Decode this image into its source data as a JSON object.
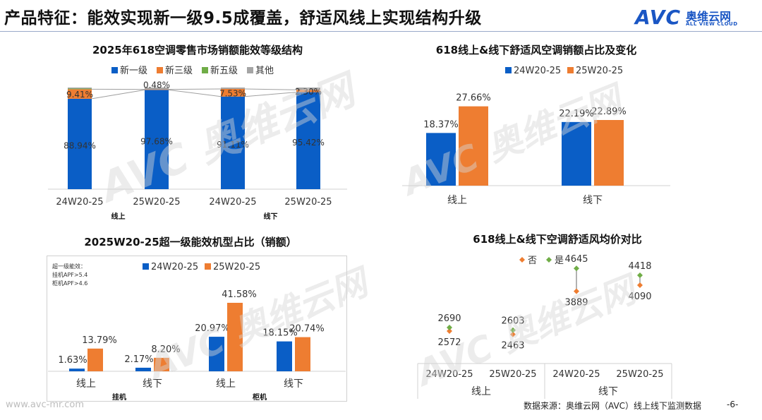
{
  "header": {
    "title": "产品特征：能效实现新一级9.5成覆盖，舒适风线上实现结构升级",
    "logo_text": "AVC",
    "logo_cn": "奥维云网",
    "logo_en": "ALL VIEW CLOUD"
  },
  "footer": {
    "url": "www.avc-mr.com",
    "source": "数据来源：奥维云网（AVC）线上线下监测数据",
    "page": "-6-"
  },
  "colors": {
    "blue": "#0a5ec6",
    "orange": "#ee7d31",
    "green": "#70ad47",
    "gray": "#a5a5a5"
  },
  "chart_data": [
    {
      "id": "energy-structure",
      "type": "bar",
      "stacked": true,
      "title": "2025年618空调零售市场销额能效等级结构",
      "categories": [
        "24W20-25",
        "25W20-25",
        "24W20-25",
        "25W20-25"
      ],
      "groups": [
        {
          "label": "线上",
          "span": [
            0,
            1
          ]
        },
        {
          "label": "线下",
          "span": [
            2,
            3
          ]
        }
      ],
      "series": [
        {
          "name": "新一级",
          "color": "#0a5ec6",
          "values": [
            88.94,
            97.68,
            91.11,
            95.42
          ],
          "labels": [
            "88.94%",
            "97.68%",
            "91.11%",
            "95.42%"
          ]
        },
        {
          "name": "新三级",
          "color": "#ee7d31",
          "values": [
            9.41,
            0.48,
            7.53,
            2.3
          ],
          "labels": [
            "9.41%",
            "0.48%",
            "7.53%",
            "2.30%"
          ]
        },
        {
          "name": "新五级",
          "color": "#70ad47",
          "values": [
            0.6,
            0.0,
            0.0,
            0.0
          ],
          "labels": [
            "",
            "",
            "",
            ""
          ]
        },
        {
          "name": "其他",
          "color": "#a5a5a5",
          "values": [
            1.05,
            1.84,
            1.36,
            2.28
          ],
          "labels": [
            "",
            "",
            "",
            ""
          ]
        }
      ],
      "ylim": [
        0,
        100
      ],
      "legend": "top"
    },
    {
      "id": "comfort-share",
      "type": "bar",
      "title": "618线上&线下舒适风空调销额占比及变化",
      "categories": [
        "线上",
        "线下"
      ],
      "series": [
        {
          "name": "24W20-25",
          "color": "#0a5ec6",
          "values": [
            18.37,
            22.19
          ],
          "labels": [
            "18.37%",
            "22.19%"
          ]
        },
        {
          "name": "25W20-25",
          "color": "#ee7d31",
          "values": [
            27.66,
            22.89
          ],
          "labels": [
            "27.66%",
            "22.89%"
          ]
        }
      ],
      "ylim": [
        0,
        32
      ],
      "legend": "top"
    },
    {
      "id": "super-level-share",
      "type": "bar",
      "title": "2025W20-25超一级能效机型占比（销额）",
      "note": [
        "超一级能效：",
        "挂机APF>5.4",
        "柜机APF>4.6"
      ],
      "categories": [
        "线上",
        "线下",
        "线上",
        "线下"
      ],
      "groups": [
        {
          "label": "挂机",
          "span": [
            0,
            1
          ]
        },
        {
          "label": "柜机",
          "span": [
            2,
            3
          ]
        }
      ],
      "series": [
        {
          "name": "24W20-25",
          "color": "#0a5ec6",
          "values": [
            1.63,
            2.17,
            20.97,
            18.15
          ],
          "labels": [
            "1.63%",
            "2.17%",
            "20.97%",
            "18.15%"
          ]
        },
        {
          "name": "25W20-25",
          "color": "#ee7d31",
          "values": [
            13.79,
            8.2,
            41.58,
            20.74
          ],
          "labels": [
            "13.79%",
            "8.20%",
            "41.58%",
            "20.74%"
          ]
        }
      ],
      "ylim": [
        0,
        48
      ],
      "legend": "top"
    },
    {
      "id": "avg-price",
      "type": "scatter",
      "title": "618线上&线下空调舒适风均价对比",
      "categories": [
        "24W20-25",
        "25W20-25",
        "24W20-25",
        "25W20-25"
      ],
      "groups": [
        {
          "label": "线上",
          "span": [
            0,
            1
          ]
        },
        {
          "label": "线下",
          "span": [
            2,
            3
          ]
        }
      ],
      "series": [
        {
          "name": "否",
          "color": "#ee7d31",
          "values": [
            2572,
            2463,
            3889,
            4090
          ]
        },
        {
          "name": "是",
          "color": "#70ad47",
          "values": [
            2690,
            2603,
            4645,
            4418
          ]
        }
      ],
      "ylim": [
        1500,
        5000
      ],
      "legend": "top"
    }
  ]
}
